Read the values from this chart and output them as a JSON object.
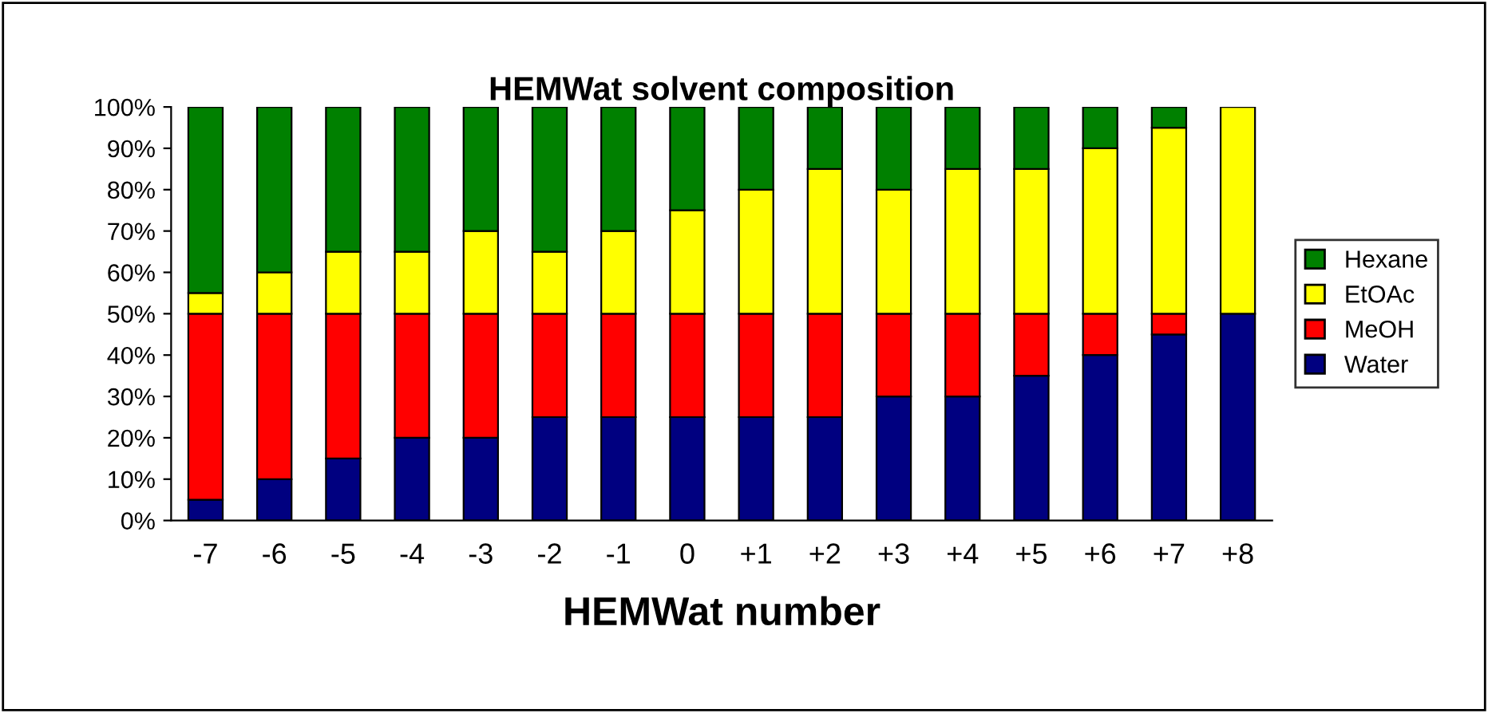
{
  "chart_data": {
    "type": "bar",
    "title": "HEMWat solvent composition",
    "xlabel": "HEMWat number",
    "stacked": true,
    "legend": "right",
    "grid": false,
    "categories": [
      "-7",
      "-6",
      "-5",
      "-4",
      "-3",
      "-2",
      "-1",
      "0",
      "+1",
      "+2",
      "+3",
      "+4",
      "+5",
      "+6",
      "+7",
      "+8"
    ],
    "series": [
      {
        "name": "Water",
        "color": "#000080",
        "values": [
          5,
          10,
          15,
          20,
          20,
          25,
          25,
          25,
          25,
          25,
          30,
          30,
          35,
          40,
          45,
          50
        ]
      },
      {
        "name": "MeOH",
        "color": "#ff0000",
        "values": [
          45,
          40,
          35,
          30,
          30,
          25,
          25,
          25,
          25,
          25,
          20,
          20,
          15,
          10,
          5,
          0
        ]
      },
      {
        "name": "EtOAc",
        "color": "#ffff00",
        "values": [
          5,
          10,
          15,
          15,
          20,
          15,
          20,
          25,
          30,
          35,
          30,
          35,
          35,
          40,
          45,
          50
        ]
      },
      {
        "name": "Hexane",
        "color": "#008000",
        "values": [
          45,
          40,
          35,
          35,
          30,
          35,
          30,
          25,
          20,
          15,
          20,
          15,
          15,
          10,
          5,
          0
        ]
      }
    ],
    "ylim": [
      0,
      100
    ],
    "yticks": [
      {
        "value": 0,
        "label": "0%"
      },
      {
        "value": 10,
        "label": "10%"
      },
      {
        "value": 20,
        "label": "20%"
      },
      {
        "value": 30,
        "label": "30%"
      },
      {
        "value": 40,
        "label": "40%"
      },
      {
        "value": 50,
        "label": "50%"
      },
      {
        "value": 60,
        "label": "60%"
      },
      {
        "value": 70,
        "label": "70%"
      },
      {
        "value": 80,
        "label": "80%"
      },
      {
        "value": 90,
        "label": "90%"
      },
      {
        "value": 100,
        "label": "100%"
      }
    ]
  }
}
